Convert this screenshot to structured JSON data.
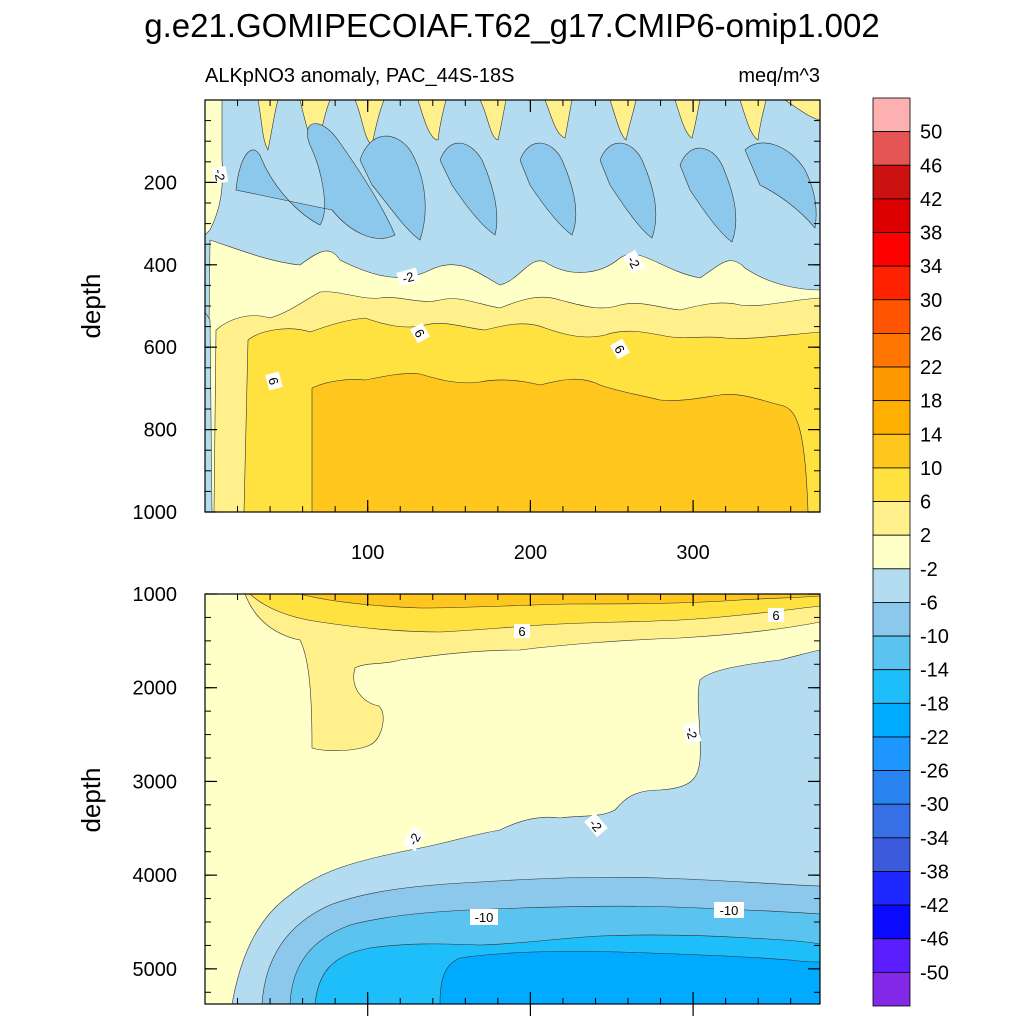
{
  "chart_data": {
    "type": "heatmap",
    "title": "g.e21.GOMIPECOIAF.T62_g17.CMIP6-omip1.002",
    "subtitle_left": "ALKpNO3 anomaly, PAC_44S-18S",
    "units": "meq/m^3",
    "colorbar": {
      "levels": [
        "50",
        "46",
        "42",
        "38",
        "34",
        "30",
        "26",
        "22",
        "18",
        "14",
        "10",
        "6",
        "2",
        "-2",
        "-6",
        "-10",
        "-14",
        "-18",
        "-22",
        "-26",
        "-30",
        "-34",
        "-38",
        "-42",
        "-46",
        "-50"
      ],
      "colors": [
        "#FDB0B0",
        "#E55555",
        "#CC1111",
        "#DD0000",
        "#FF0000",
        "#FF2200",
        "#FF5500",
        "#FF7700",
        "#FF9900",
        "#FFB000",
        "#FFC61E",
        "#FFE140",
        "#FFF08C",
        "#FFFFC8",
        "#B4DCF0",
        "#8CC8EB",
        "#5AC3F0",
        "#1EBEFA",
        "#00AAFF",
        "#1E96FF",
        "#2882F0",
        "#3770E6",
        "#3C5ADC",
        "#1E28FF",
        "#0A0AFF",
        "#5A1EFF",
        "#8228E6"
      ]
    },
    "panels": [
      {
        "name": "upper",
        "ylabel": "depth",
        "xlabel": "",
        "ylim": [
          0,
          1000
        ],
        "xlim": [
          0,
          378
        ],
        "yticks": [
          "200",
          "400",
          "600",
          "800",
          "1000"
        ],
        "xticks": [
          "100",
          "200",
          "300"
        ],
        "contour_labels": [
          "-2",
          "-2",
          "-2",
          "6",
          "6",
          "6"
        ]
      },
      {
        "name": "lower",
        "ylabel": "depth",
        "xlabel": "",
        "ylim": [
          1000,
          5375
        ],
        "xlim": [
          0,
          378
        ],
        "yticks": [
          "1000",
          "2000",
          "3000",
          "4000",
          "5000"
        ],
        "xticks": [],
        "contour_labels": [
          "6",
          "6",
          "-2",
          "-2",
          "-2",
          "-10",
          "-10"
        ]
      }
    ]
  }
}
